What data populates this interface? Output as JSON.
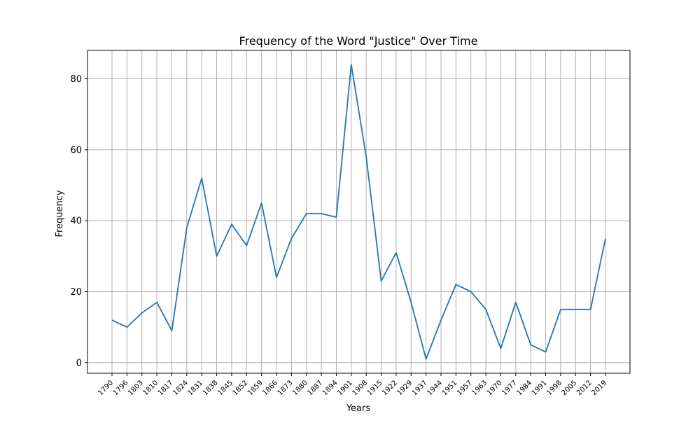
{
  "chart_data": {
    "type": "line",
    "title": "Frequency of the Word \"Justice\" Over Time",
    "xlabel": "Years",
    "ylabel": "Frequency",
    "categories": [
      "1790",
      "1796",
      "1803",
      "1810",
      "1817",
      "1824",
      "1831",
      "1838",
      "1845",
      "1852",
      "1859",
      "1866",
      "1873",
      "1880",
      "1887",
      "1894",
      "1901",
      "1908",
      "1915",
      "1922",
      "1929",
      "1937",
      "1944",
      "1951",
      "1957",
      "1963",
      "1970",
      "1977",
      "1984",
      "1991",
      "1998",
      "2005",
      "2012",
      "2019"
    ],
    "series": [
      {
        "values": [
          12,
          10,
          14,
          17,
          9,
          38,
          52,
          30,
          39,
          33,
          45,
          24,
          35,
          42,
          42,
          41,
          84,
          58,
          23,
          31,
          17,
          1,
          12,
          22,
          20,
          15,
          4,
          17,
          5,
          3,
          15,
          15,
          15,
          35
        ]
      }
    ],
    "ylim": [
      -3,
      88
    ],
    "yticks": [
      0,
      20,
      40,
      60,
      80
    ],
    "grid": true,
    "line_color": "#1f77b4"
  }
}
